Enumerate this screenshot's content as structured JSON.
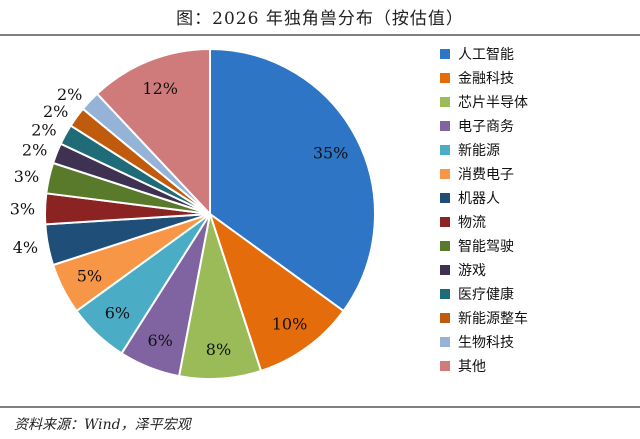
{
  "title": "图：2026 年独角兽分布（按估值）",
  "source": "资料来源：Wind，泽平宏观",
  "chart_data": {
    "type": "pie",
    "title": "图：2026 年独角兽分布（按估值）",
    "legend_position": "right",
    "start": "top",
    "direction": "clockwise",
    "slices": [
      {
        "name": "人工智能",
        "value": 35,
        "label": "35%",
        "color": "#2e75c6"
      },
      {
        "name": "金融科技",
        "value": 10,
        "label": "10%",
        "color": "#e46c0a"
      },
      {
        "name": "芯片半导体",
        "value": 8,
        "label": "8%",
        "color": "#9bbb59"
      },
      {
        "name": "电子商务",
        "value": 6,
        "label": "6%",
        "color": "#8064a2"
      },
      {
        "name": "新能源",
        "value": 6,
        "label": "6%",
        "color": "#4bacc6"
      },
      {
        "name": "消费电子",
        "value": 5,
        "label": "5%",
        "color": "#f79646"
      },
      {
        "name": "机器人",
        "value": 4,
        "label": "4%",
        "color": "#1f4e79"
      },
      {
        "name": "物流",
        "value": 3,
        "label": "3%",
        "color": "#8b2323"
      },
      {
        "name": "智能驾驶",
        "value": 3,
        "label": "3%",
        "color": "#5a7a2b"
      },
      {
        "name": "游戏",
        "value": 2,
        "label": "2%",
        "color": "#3f3151"
      },
      {
        "name": "医疗健康",
        "value": 2,
        "label": "2%",
        "color": "#1f6b78"
      },
      {
        "name": "新能源整车",
        "value": 2,
        "label": "2%",
        "color": "#c05a0c"
      },
      {
        "name": "生物科技",
        "value": 2,
        "label": "2%",
        "color": "#95b3d7"
      },
      {
        "name": "其他",
        "value": 12,
        "label": "12%",
        "color": "#d07b7b"
      }
    ]
  }
}
